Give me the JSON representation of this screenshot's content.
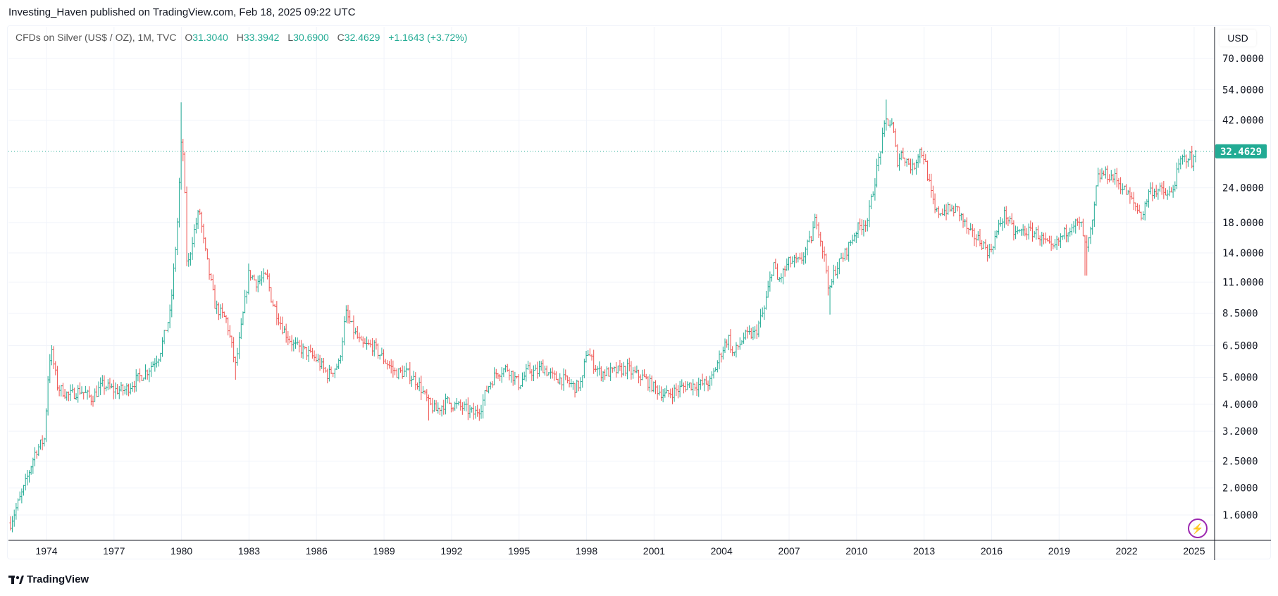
{
  "header": {
    "published": "Investing_Haven published on TradingView.com, Feb 18, 2025 09:22 UTC"
  },
  "legend": {
    "symbol": "CFDs on Silver (US$ / OZ), 1M, TVC",
    "open_label": "O",
    "open": "31.3040",
    "high_label": "H",
    "high": "33.3942",
    "low_label": "L",
    "low": "30.6900",
    "close_label": "C",
    "close": "32.4629",
    "change": "+1.1643 (+3.72%)"
  },
  "footer": {
    "brand": "TradingView",
    "logo_text": "17"
  },
  "icons": {
    "alert": "lightning-icon"
  },
  "colors": {
    "up": "#22ab94",
    "down": "#ef5350",
    "last_price": "#22ab94",
    "accent": "#9c27b0"
  },
  "chart_data": {
    "type": "ohlc-bar",
    "interval": "1M",
    "currency": "USD",
    "y_scale": "log",
    "ylim": [
      1.35,
      78
    ],
    "grid": true,
    "last_price": "32.4629",
    "y_ticks": [
      "70.0000",
      "54.0000",
      "42.0000",
      "24.0000",
      "18.0000",
      "14.0000",
      "11.0000",
      "8.5000",
      "6.5000",
      "5.0000",
      "4.0000",
      "3.2000",
      "2.5000",
      "2.0000",
      "1.6000"
    ],
    "x_ticks": [
      "1974",
      "1977",
      "1980",
      "1983",
      "1986",
      "1989",
      "1992",
      "1995",
      "1998",
      "2001",
      "2004",
      "2007",
      "2010",
      "2013",
      "2016",
      "2019",
      "2022",
      "2025"
    ],
    "approx_close_path": [
      [
        1972.4,
        1.5
      ],
      [
        1973.0,
        2.0
      ],
      [
        1973.5,
        2.7
      ],
      [
        1973.9,
        3.0
      ],
      [
        1974.1,
        5.5
      ],
      [
        1974.2,
        6.3
      ],
      [
        1974.5,
        4.6
      ],
      [
        1975.0,
        4.3
      ],
      [
        1975.5,
        4.5
      ],
      [
        1976.0,
        4.2
      ],
      [
        1976.5,
        4.7
      ],
      [
        1977.0,
        4.5
      ],
      [
        1977.5,
        4.5
      ],
      [
        1978.0,
        4.9
      ],
      [
        1978.5,
        5.3
      ],
      [
        1979.0,
        6.0
      ],
      [
        1979.5,
        8.5
      ],
      [
        1979.8,
        17
      ],
      [
        1980.0,
        36
      ],
      [
        1980.1,
        30
      ],
      [
        1980.25,
        12
      ],
      [
        1980.5,
        16
      ],
      [
        1980.8,
        20
      ],
      [
        1981.0,
        15
      ],
      [
        1981.5,
        9
      ],
      [
        1982.0,
        8
      ],
      [
        1982.4,
        5.5
      ],
      [
        1982.6,
        7
      ],
      [
        1983.0,
        12
      ],
      [
        1983.3,
        11
      ],
      [
        1983.8,
        11.5
      ],
      [
        1984.0,
        9.5
      ],
      [
        1984.5,
        7.5
      ],
      [
        1985.0,
        6.5
      ],
      [
        1985.5,
        6.2
      ],
      [
        1986.0,
        5.8
      ],
      [
        1986.5,
        5.1
      ],
      [
        1987.0,
        5.6
      ],
      [
        1987.3,
        8.5
      ],
      [
        1987.6,
        7.5
      ],
      [
        1988.0,
        6.5
      ],
      [
        1988.5,
        6.5
      ],
      [
        1989.0,
        5.8
      ],
      [
        1989.5,
        5.2
      ],
      [
        1990.0,
        5.2
      ],
      [
        1990.5,
        4.8
      ],
      [
        1991.0,
        4.0
      ],
      [
        1991.3,
        3.8
      ],
      [
        1991.8,
        4.1
      ],
      [
        1992.0,
        4.0
      ],
      [
        1992.5,
        3.9
      ],
      [
        1993.0,
        3.7
      ],
      [
        1993.3,
        3.9
      ],
      [
        1993.6,
        4.6
      ],
      [
        1994.0,
        5.2
      ],
      [
        1994.5,
        5.4
      ],
      [
        1995.0,
        4.7
      ],
      [
        1995.4,
        5.3
      ],
      [
        1995.8,
        5.2
      ],
      [
        1996.0,
        5.5
      ],
      [
        1996.5,
        5.0
      ],
      [
        1997.0,
        4.9
      ],
      [
        1997.5,
        4.6
      ],
      [
        1997.8,
        4.8
      ],
      [
        1998.0,
        6.3
      ],
      [
        1998.3,
        5.6
      ],
      [
        1998.6,
        5.2
      ],
      [
        1999.0,
        5.2
      ],
      [
        1999.5,
        5.3
      ],
      [
        1999.8,
        5.4
      ],
      [
        2000.0,
        5.2
      ],
      [
        2000.5,
        5.0
      ],
      [
        2001.0,
        4.6
      ],
      [
        2001.5,
        4.3
      ],
      [
        2002.0,
        4.5
      ],
      [
        2002.5,
        4.7
      ],
      [
        2003.0,
        4.7
      ],
      [
        2003.5,
        4.8
      ],
      [
        2004.0,
        6.2
      ],
      [
        2004.3,
        7.0
      ],
      [
        2004.5,
        6.0
      ],
      [
        2005.0,
        7.0
      ],
      [
        2005.5,
        7.2
      ],
      [
        2005.9,
        8.8
      ],
      [
        2006.3,
        13
      ],
      [
        2006.5,
        11
      ],
      [
        2007.0,
        13
      ],
      [
        2007.5,
        13
      ],
      [
        2008.0,
        16
      ],
      [
        2008.2,
        19
      ],
      [
        2008.6,
        13
      ],
      [
        2008.8,
        10
      ],
      [
        2009.0,
        12
      ],
      [
        2009.5,
        14
      ],
      [
        2010.0,
        17
      ],
      [
        2010.5,
        18.5
      ],
      [
        2010.9,
        28
      ],
      [
        2011.3,
        42
      ],
      [
        2011.6,
        40
      ],
      [
        2011.8,
        30
      ],
      [
        2012.0,
        32
      ],
      [
        2012.5,
        28
      ],
      [
        2012.8,
        33
      ],
      [
        2013.0,
        31
      ],
      [
        2013.3,
        23
      ],
      [
        2013.5,
        19.5
      ],
      [
        2014.0,
        20
      ],
      [
        2014.5,
        20
      ],
      [
        2015.0,
        16.5
      ],
      [
        2015.5,
        15.5
      ],
      [
        2015.9,
        14
      ],
      [
        2016.4,
        18
      ],
      [
        2016.6,
        19.5
      ],
      [
        2017.0,
        16.5
      ],
      [
        2017.5,
        16.8
      ],
      [
        2018.0,
        16.5
      ],
      [
        2018.7,
        14.3
      ],
      [
        2019.0,
        15.5
      ],
      [
        2019.6,
        18
      ],
      [
        2020.0,
        17.5
      ],
      [
        2020.2,
        14
      ],
      [
        2020.5,
        18
      ],
      [
        2020.7,
        26
      ],
      [
        2021.0,
        27
      ],
      [
        2021.5,
        26
      ],
      [
        2022.0,
        23
      ],
      [
        2022.5,
        20
      ],
      [
        2022.7,
        19
      ],
      [
        2023.0,
        23.5
      ],
      [
        2023.5,
        23.5
      ],
      [
        2023.8,
        22.5
      ],
      [
        2024.0,
        23
      ],
      [
        2024.4,
        30
      ],
      [
        2024.8,
        31.5
      ],
      [
        2024.9,
        29
      ],
      [
        2025.1,
        32.4629
      ]
    ],
    "peak_highs": [
      [
        1980.0,
        48.7
      ],
      [
        2011.3,
        49.8
      ]
    ],
    "notable_lows": [
      [
        1982.4,
        4.9
      ],
      [
        1991.0,
        3.5
      ],
      [
        1993.1,
        3.55
      ],
      [
        2008.8,
        8.4
      ],
      [
        2020.2,
        11.6
      ]
    ]
  }
}
